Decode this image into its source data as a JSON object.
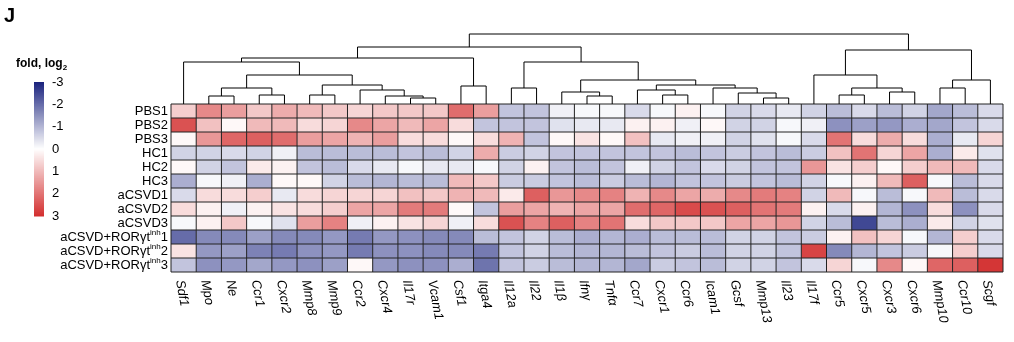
{
  "chart_data": {
    "type": "heatmap",
    "annotations": [
      "J"
    ],
    "clabel": "fold, log$_{2}$",
    "clim": [
      -3,
      3
    ],
    "cticks": [
      -3,
      -2,
      -1,
      0,
      1,
      2,
      3
    ],
    "categories": [
      "Sdf1",
      "Mpo",
      "Ne",
      "Ccr1",
      "Cxcr2",
      "Mmp8",
      "Mmp9",
      "Ccr2",
      "Cxcr4",
      "Il17r",
      "Vcam1",
      "Csf1",
      "Itga4",
      "Il12a",
      "Il22",
      "Il1β",
      "Ifnγ",
      "Tnfα",
      "Ccr7",
      "Cxcr1",
      "Ccr6",
      "Icam1",
      "Gcsf",
      "Mmp13",
      "Il23",
      "Il17f",
      "Ccr5",
      "Cxcr5",
      "Cxcr3",
      "Cxcr6",
      "Mmp10",
      "Ccr10",
      "Scgf"
    ],
    "y_categories": [
      "PBS1",
      "PBS2",
      "PBS3",
      "HC1",
      "HC2",
      "HC3",
      "aCSVD1",
      "aCSVD2",
      "aCSVD3",
      "aCSVD+RORγt$^{inh}$1",
      "aCSVD+RORγt$^{inh}$2",
      "aCSVD+RORγt$^{inh}$3"
    ],
    "cells": [
      [
        0.7,
        1.7,
        1.4,
        0.8,
        1.2,
        1.0,
        0.8,
        0.6,
        0.8,
        0.8,
        0.8,
        2.1,
        1.4,
        -0.8,
        -0.8,
        -0.2,
        -0.1,
        -0.1,
        -0.5,
        -0.1,
        0.2,
        -0.1,
        -0.6,
        -0.5,
        -0.3,
        -0.6,
        -0.9,
        -0.5,
        -0.9,
        -0.6,
        -1.2,
        -0.9,
        -0.5
      ],
      [
        2.5,
        0.9,
        0.1,
        1.0,
        1.0,
        0.5,
        0.6,
        1.7,
        1.3,
        1.0,
        1.3,
        0.5,
        -0.8,
        -0.8,
        -0.8,
        -0.4,
        -0.3,
        -0.3,
        0.2,
        0.2,
        -0.2,
        0.1,
        -0.6,
        -0.6,
        -0.1,
        -0.2,
        -1.5,
        -1.3,
        -1.4,
        -1.1,
        -1.2,
        -0.8,
        -0.5
      ],
      [
        0.1,
        1.5,
        2.2,
        2.3,
        2.1,
        1.4,
        1.3,
        1.1,
        1.4,
        0.5,
        0.5,
        0.1,
        0.5,
        1.1,
        -0.8,
        0.1,
        0.4,
        0.1,
        0.9,
        -0.3,
        -0.2,
        -0.2,
        -0.6,
        -0.4,
        -0.1,
        -0.5,
        2.0,
        0.5,
        1.2,
        0.5,
        -1.1,
        -0.3,
        0.6
      ],
      [
        -0.6,
        -0.6,
        -0.5,
        -0.6,
        -0.2,
        -0.9,
        -0.9,
        -0.9,
        -0.9,
        -0.8,
        -0.9,
        -0.6,
        1.2,
        -0.7,
        -0.6,
        -0.8,
        -0.8,
        -0.8,
        -0.8,
        -0.8,
        -0.9,
        -0.8,
        -0.7,
        -0.8,
        -0.9,
        -0.7,
        0.9,
        2.0,
        0.6,
        1.3,
        -1.1,
        0.3,
        -0.4
      ],
      [
        0.1,
        -0.6,
        -0.8,
        0.3,
        0.2,
        -0.8,
        -0.9,
        -0.5,
        -0.3,
        -0.1,
        -0.3,
        -0.3,
        -0.1,
        -0.6,
        0.2,
        -0.8,
        -0.9,
        -0.8,
        -0.2,
        -0.6,
        -0.8,
        -0.5,
        -0.6,
        -0.8,
        -0.8,
        1.5,
        0.4,
        0.7,
        0.1,
        0.7,
        1.0,
        1.0,
        -0.5
      ],
      [
        -1.1,
        -0.1,
        -0.2,
        -1.1,
        0.1,
        0.1,
        -0.6,
        -0.9,
        -1.0,
        -0.9,
        -0.9,
        1.0,
        0.8,
        -0.7,
        -0.7,
        -0.8,
        -0.9,
        -0.7,
        -0.9,
        -1.0,
        -0.8,
        -0.8,
        -0.7,
        -0.8,
        -0.9,
        -0.6,
        -0.1,
        0.2,
        1.0,
        2.3,
        -0.1,
        -0.9,
        -0.5
      ],
      [
        -0.5,
        0.5,
        0.5,
        0.7,
        -0.3,
        0.5,
        0.6,
        0.6,
        0.6,
        0.9,
        0.8,
        1.1,
        1.0,
        0.3,
        2.3,
        1.5,
        1.7,
        1.8,
        1.1,
        1.7,
        1.3,
        1.2,
        1.7,
        1.9,
        1.8,
        -0.6,
        1.0,
        -0.1,
        -0.9,
        -0.1,
        1.0,
        -0.9,
        -0.5
      ],
      [
        0.5,
        0.2,
        -0.2,
        0.2,
        0.4,
        0.5,
        0.7,
        1.3,
        1.3,
        1.9,
        1.9,
        0.1,
        -0.8,
        1.4,
        1.3,
        1.1,
        1.3,
        1.3,
        2.1,
        2.2,
        2.6,
        2.5,
        2.3,
        2.0,
        1.9,
        0.2,
        -0.5,
        0.2,
        -1.0,
        -1.5,
        0.5,
        -1.5,
        -0.5
      ],
      [
        -0.1,
        0.2,
        0.8,
        -0.1,
        -0.4,
        1.4,
        1.8,
        -0.2,
        0.2,
        0.4,
        0.6,
        -0.2,
        0.5,
        2.5,
        1.8,
        2.3,
        1.8,
        2.0,
        0.5,
        0.8,
        0.8,
        0.8,
        1.3,
        1.3,
        1.5,
        -0.6,
        -0.9,
        -2.5,
        -0.9,
        -1.1,
        0.3,
        -0.6,
        -0.4
      ],
      [
        -2.0,
        -1.6,
        -1.6,
        -1.3,
        -1.6,
        -1.6,
        -1.4,
        -1.8,
        -1.4,
        -1.5,
        -1.6,
        -1.6,
        -0.9,
        -0.8,
        -0.6,
        -0.9,
        -1.1,
        -1.0,
        -1.1,
        -0.9,
        -0.9,
        -0.9,
        -0.6,
        -0.6,
        -0.8,
        -0.7,
        0.2,
        0.9,
        0.6,
        -0.1,
        -1.0,
        0.7,
        -0.5
      ],
      [
        0.4,
        -1.4,
        -1.3,
        -1.7,
        -1.8,
        -1.5,
        -1.4,
        -1.8,
        -1.5,
        -1.5,
        -1.6,
        -1.6,
        -1.8,
        -0.8,
        -0.6,
        -0.9,
        -1.0,
        -1.0,
        -0.9,
        -0.8,
        -0.7,
        -0.9,
        -0.6,
        -0.6,
        -0.8,
        2.7,
        -1.6,
        -1.0,
        -0.8,
        -0.7,
        -0.1,
        0.7,
        -0.5
      ],
      [
        -0.8,
        -1.5,
        -1.4,
        -1.2,
        -1.4,
        -1.5,
        -1.3,
        0.1,
        -1.4,
        -1.5,
        -1.5,
        -1.1,
        -1.9,
        -0.8,
        -0.7,
        -0.9,
        -1.0,
        -1.0,
        -1.2,
        -0.7,
        -0.8,
        -0.9,
        -0.6,
        -0.6,
        -0.8,
        -0.5,
        0.6,
        -0.1,
        1.7,
        0.1,
        2.2,
        2.3,
        2.9
      ]
    ]
  }
}
